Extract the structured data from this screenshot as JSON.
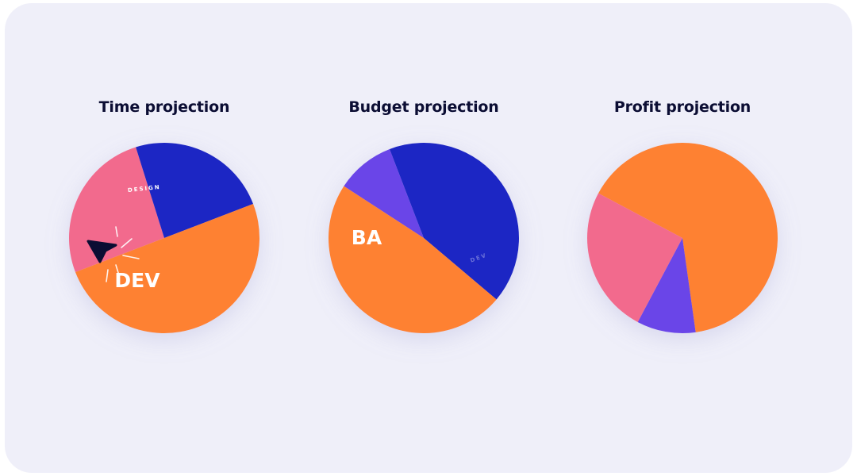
{
  "colors": {
    "background": "#efeff9",
    "title": "#0b0d33",
    "pink": "#f26a8d",
    "orange": "#fe8132",
    "blue": "#1f27c4",
    "purple": "#6a44e8",
    "cursor": "#0b0d33"
  },
  "chart_data": [
    {
      "type": "pie",
      "title": "Time projection",
      "slices": [
        {
          "label": "DESIGN",
          "value": 26,
          "color": "#f26a8d"
        },
        {
          "label": "",
          "value": 24,
          "color": "#1f27c4"
        },
        {
          "label": "DEV",
          "value": 50,
          "color": "#fe8132"
        }
      ],
      "annotations": [
        "pointer cursor with click burst over DEV slice"
      ]
    },
    {
      "type": "pie",
      "title": "Budget projection",
      "slices": [
        {
          "label": "",
          "value": 10,
          "color": "#6a44e8"
        },
        {
          "label": "DEV",
          "value": 42,
          "color": "#1f27c4"
        },
        {
          "label": "BA",
          "value": 48,
          "color": "#fe8132"
        }
      ]
    },
    {
      "type": "pie",
      "title": "Profit projection",
      "slices": [
        {
          "label": "",
          "value": 65,
          "color": "#fe8132"
        },
        {
          "label": "",
          "value": 10,
          "color": "#6a44e8"
        },
        {
          "label": "",
          "value": 25,
          "color": "#f26a8d"
        }
      ]
    }
  ]
}
